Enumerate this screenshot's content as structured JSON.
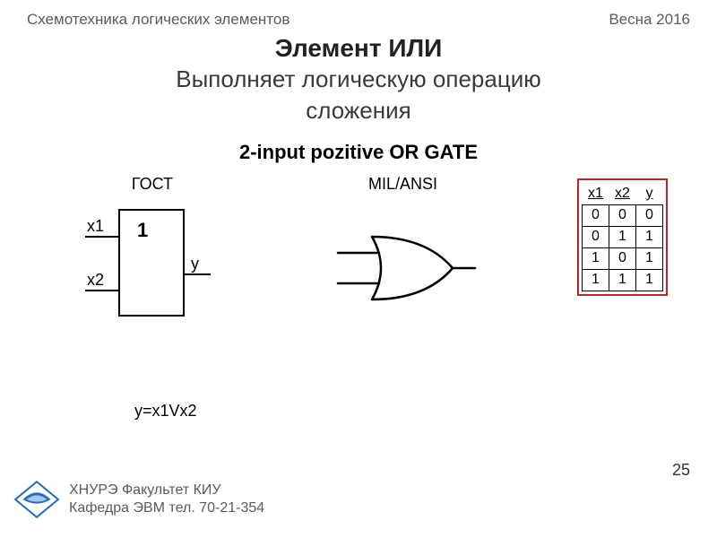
{
  "header": {
    "left": "Схемотехника логических элементов",
    "right": "Весна 2016"
  },
  "title": {
    "main": "Элемент ИЛИ",
    "sub1": "Выполняет  логическую операцию",
    "sub2": "сложения"
  },
  "gate_title": "2-input pozitive OR GATE",
  "columns": {
    "gost_label": "ГОСТ",
    "ansi_label": "MIL/ANSI"
  },
  "gost_symbol": {
    "in1": "x1",
    "in2": "x2",
    "out": "y",
    "body_label": "1",
    "stroke": "#000000",
    "stroke_width": 2,
    "font_size": 18,
    "label_font_size": 22
  },
  "ansi_symbol": {
    "stroke": "#000000",
    "stroke_width": 2.5
  },
  "truth_table": {
    "border_color": "#b02a2a",
    "headers": [
      "x1",
      "x2",
      "y"
    ],
    "rows": [
      [
        "0",
        "0",
        "0"
      ],
      [
        "0",
        "1",
        "1"
      ],
      [
        "1",
        "0",
        "1"
      ],
      [
        "1",
        "1",
        "1"
      ]
    ]
  },
  "formula": "y=x1Vx2",
  "footer": {
    "line1": "ХНУРЭ Факультет КИУ",
    "line2": "Кафедра ЭВМ   тел. 70-21-354",
    "page": "25"
  },
  "logo": {
    "fill": "#2a6fb5",
    "light": "#a6c8e8"
  }
}
